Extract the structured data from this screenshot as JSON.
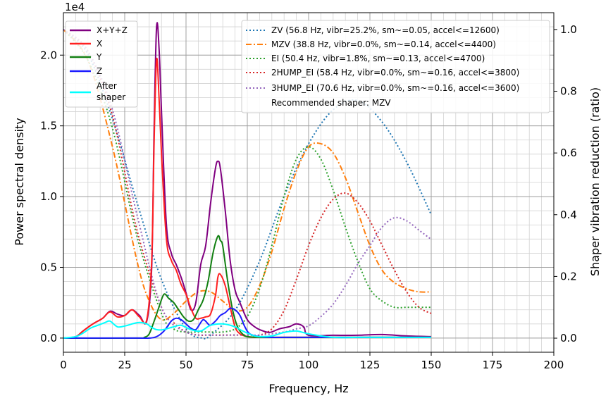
{
  "chart_data": {
    "type": "line",
    "xlabel": "Frequency, Hz",
    "ylabel": "Power spectral density",
    "y2label": "Shaper vibration reduction (ratio)",
    "exponent_label": "1e4",
    "xlim": [
      0,
      200
    ],
    "ylim": [
      -1000,
      23000
    ],
    "y2lim": [
      -0.0456,
      1.0545
    ],
    "xticks": [
      0,
      25,
      50,
      75,
      100,
      125,
      150,
      175,
      200
    ],
    "xtick_labels": [
      "0",
      "25",
      "50",
      "75",
      "100",
      "125",
      "150",
      "175",
      "200"
    ],
    "yticks": [
      0,
      5000,
      10000,
      15000,
      20000
    ],
    "ytick_labels": [
      "0.0",
      "0.5",
      "1.0",
      "1.5",
      "2.0"
    ],
    "y2ticks": [
      0,
      0.2,
      0.4,
      0.6,
      0.8,
      1.0
    ],
    "y2tick_labels": [
      "0.0",
      "0.2",
      "0.4",
      "0.6",
      "0.8",
      "1.0"
    ],
    "grid": true,
    "legend_left": {
      "placement": "top-left",
      "entries": [
        {
          "label": "X+Y+Z",
          "color": "#800080",
          "style": "solid"
        },
        {
          "label": "X",
          "color": "#ff2020",
          "style": "solid"
        },
        {
          "label": "Y",
          "color": "#128012",
          "style": "solid"
        },
        {
          "label": "Z",
          "color": "#1c1cff",
          "style": "solid"
        },
        {
          "label": "After",
          "label2": "shaper",
          "color": "#00ffff",
          "style": "solid"
        }
      ]
    },
    "legend_right": {
      "placement": "top-right",
      "entries": [
        {
          "label": "ZV (56.8 Hz, vibr=25.2%, sm~=0.05, accel<=12600)",
          "color": "#1f77b4",
          "style": "dotted"
        },
        {
          "label": "MZV (38.8 Hz, vibr=0.0%, sm~=0.14, accel<=4400)",
          "color": "#ff7f0e",
          "style": "dashdot"
        },
        {
          "label": "EI (50.4 Hz, vibr=1.8%, sm~=0.13, accel<=4700)",
          "color": "#2ca02c",
          "style": "dotted"
        },
        {
          "label": "2HUMP_EI (58.4 Hz, vibr=0.0%, sm~=0.16, accel<=3800)",
          "color": "#d62728",
          "style": "dotted"
        },
        {
          "label": "3HUMP_EI (70.6 Hz, vibr=0.0%, sm~=0.16, accel<=3600)",
          "color": "#9467bd",
          "style": "dotted"
        }
      ],
      "note": "Recommended shaper: MZV"
    },
    "psd_series": [
      {
        "name": "X+Y+Z",
        "color": "#800080",
        "width": 2,
        "x": [
          0,
          5,
          8,
          12,
          16,
          19,
          22,
          25,
          28,
          31,
          34,
          36,
          37,
          38,
          39,
          40,
          42,
          44,
          46,
          48,
          50,
          52,
          54,
          56,
          58,
          60,
          62,
          63,
          64,
          66,
          68,
          70,
          72,
          75,
          78,
          80,
          84,
          88,
          92,
          95,
          98,
          100,
          110,
          120,
          130,
          140,
          150
        ],
        "y": [
          0,
          100,
          500,
          1000,
          1400,
          1900,
          1700,
          1600,
          2000,
          1600,
          1200,
          5000,
          15000,
          22000,
          20500,
          16000,
          8000,
          6000,
          5200,
          4300,
          3200,
          2000,
          2500,
          5200,
          6500,
          9500,
          12000,
          12500,
          12000,
          9000,
          5500,
          3400,
          2500,
          1300,
          800,
          600,
          400,
          650,
          800,
          1000,
          800,
          200,
          200,
          200,
          250,
          150,
          100
        ]
      },
      {
        "name": "X",
        "color": "#ff2020",
        "width": 2,
        "x": [
          0,
          5,
          8,
          12,
          16,
          19,
          22,
          25,
          28,
          31,
          34,
          36,
          37,
          38,
          39,
          40,
          42,
          44,
          46,
          48,
          50,
          52,
          54,
          56,
          58,
          60,
          62,
          63,
          64,
          66,
          68,
          70,
          72,
          75,
          78,
          80,
          85,
          90,
          95,
          100,
          150
        ],
        "y": [
          0,
          100,
          500,
          1000,
          1400,
          1850,
          1500,
          1600,
          2000,
          1500,
          1300,
          5500,
          14000,
          19700,
          17000,
          13000,
          7000,
          5500,
          4800,
          3800,
          3100,
          2100,
          1400,
          1400,
          1500,
          1700,
          3000,
          4300,
          4500,
          3700,
          2200,
          800,
          300,
          100,
          50,
          50,
          50,
          50,
          50,
          50,
          50
        ]
      },
      {
        "name": "Y",
        "color": "#128012",
        "width": 2,
        "x": [
          0,
          30,
          33,
          35,
          37,
          39,
          41,
          43,
          45,
          47,
          49,
          51,
          53,
          55,
          57,
          59,
          61,
          63,
          64,
          65,
          67,
          69,
          71,
          73,
          75,
          80,
          85,
          90,
          100,
          150
        ],
        "y": [
          0,
          0,
          50,
          300,
          1200,
          2200,
          3100,
          2800,
          2500,
          2000,
          1500,
          1200,
          1300,
          2000,
          2700,
          4000,
          6000,
          7200,
          6900,
          6500,
          4000,
          2000,
          800,
          300,
          100,
          50,
          50,
          50,
          50,
          50
        ]
      },
      {
        "name": "Z",
        "color": "#1c1cff",
        "width": 2,
        "x": [
          0,
          30,
          35,
          38,
          41,
          44,
          46,
          48,
          50,
          52,
          54,
          56,
          57,
          58,
          59,
          60,
          62,
          64,
          66,
          68,
          70,
          72,
          74,
          76,
          80,
          85,
          90,
          100,
          150
        ],
        "y": [
          0,
          0,
          0,
          100,
          500,
          1200,
          1400,
          1300,
          1000,
          700,
          600,
          1100,
          1300,
          1200,
          1000,
          900,
          1200,
          1600,
          1800,
          2100,
          2000,
          1600,
          800,
          300,
          100,
          50,
          50,
          50,
          50
        ]
      },
      {
        "name": "After shaper",
        "color": "#00ffff",
        "width": 2,
        "x": [
          0,
          5,
          8,
          11,
          14,
          17,
          19,
          22,
          25,
          28,
          31,
          34,
          36,
          38,
          40,
          42,
          45,
          48,
          52,
          56,
          60,
          65,
          70,
          72,
          75,
          78,
          80,
          85,
          90,
          95,
          100,
          110,
          120,
          130,
          140,
          150
        ],
        "y": [
          0,
          100,
          350,
          700,
          900,
          1100,
          1200,
          800,
          850,
          1000,
          1100,
          1000,
          750,
          600,
          580,
          650,
          800,
          900,
          600,
          500,
          900,
          1000,
          800,
          600,
          350,
          150,
          100,
          150,
          400,
          500,
          300,
          50,
          50,
          50,
          50,
          50
        ]
      }
    ],
    "shaper_series": [
      {
        "name": "ZV",
        "color": "#1f77b4",
        "dash": "2,3",
        "x": [
          0,
          10,
          20,
          30,
          40,
          50,
          56.8,
          60,
          70,
          80,
          90,
          100,
          110,
          120,
          130,
          140,
          150
        ],
        "y": [
          1.0,
          0.92,
          0.71,
          0.44,
          0.19,
          0.03,
          0.0,
          0.01,
          0.09,
          0.25,
          0.46,
          0.63,
          0.74,
          0.77,
          0.7,
          0.57,
          0.4
        ]
      },
      {
        "name": "MZV",
        "color": "#ff7f0e",
        "dash": "8,3,2,3",
        "x": [
          0,
          10,
          20,
          30,
          35,
          40,
          45,
          50,
          55,
          60,
          65,
          70,
          75,
          80,
          85,
          90,
          95,
          100,
          105,
          110,
          115,
          120,
          125,
          130,
          135,
          140,
          145,
          150
        ],
        "y": [
          1.0,
          0.9,
          0.62,
          0.25,
          0.12,
          0.06,
          0.08,
          0.12,
          0.15,
          0.15,
          0.12,
          0.09,
          0.1,
          0.17,
          0.28,
          0.42,
          0.54,
          0.62,
          0.63,
          0.6,
          0.52,
          0.41,
          0.3,
          0.22,
          0.18,
          0.16,
          0.15,
          0.15
        ]
      },
      {
        "name": "EI",
        "color": "#2ca02c",
        "dash": "2,3",
        "x": [
          0,
          10,
          20,
          30,
          40,
          45,
          50,
          55,
          60,
          65,
          70,
          75,
          80,
          85,
          90,
          95,
          100,
          105,
          110,
          115,
          120,
          125,
          130,
          135,
          140,
          145,
          150
        ],
        "y": [
          1.0,
          0.9,
          0.68,
          0.33,
          0.08,
          0.03,
          0.02,
          0.02,
          0.02,
          0.02,
          0.03,
          0.07,
          0.16,
          0.3,
          0.46,
          0.58,
          0.62,
          0.58,
          0.48,
          0.36,
          0.25,
          0.16,
          0.12,
          0.1,
          0.1,
          0.1,
          0.1
        ]
      },
      {
        "name": "2HUMP_EI",
        "color": "#d62728",
        "dash": "2,3",
        "x": [
          0,
          10,
          20,
          30,
          40,
          45,
          50,
          55,
          60,
          65,
          70,
          75,
          80,
          85,
          90,
          95,
          100,
          105,
          110,
          115,
          120,
          125,
          130,
          135,
          140,
          145,
          150
        ],
        "y": [
          1.0,
          0.93,
          0.72,
          0.35,
          0.1,
          0.05,
          0.02,
          0.01,
          0.01,
          0.01,
          0.01,
          0.01,
          0.01,
          0.03,
          0.09,
          0.19,
          0.3,
          0.39,
          0.45,
          0.47,
          0.44,
          0.38,
          0.3,
          0.22,
          0.15,
          0.1,
          0.08
        ]
      },
      {
        "name": "3HUMP_EI",
        "color": "#9467bd",
        "dash": "2,3",
        "x": [
          0,
          10,
          20,
          30,
          40,
          50,
          60,
          70,
          80,
          90,
          95,
          100,
          105,
          110,
          115,
          120,
          125,
          130,
          135,
          140,
          145,
          150
        ],
        "y": [
          1.0,
          0.93,
          0.74,
          0.4,
          0.1,
          0.02,
          0.01,
          0.01,
          0.01,
          0.02,
          0.03,
          0.04,
          0.07,
          0.11,
          0.17,
          0.24,
          0.3,
          0.36,
          0.39,
          0.38,
          0.35,
          0.32
        ]
      }
    ]
  }
}
